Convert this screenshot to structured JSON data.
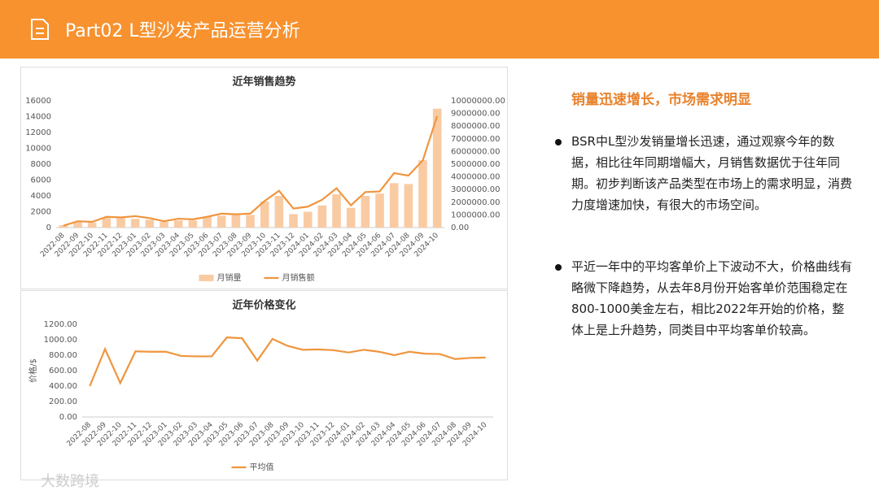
{
  "header": {
    "title": "Part02 L型沙发产品运营分析"
  },
  "chart_data": [
    {
      "type": "combo",
      "title": "近年销售趋势",
      "categories": [
        "2022-08",
        "2022-09",
        "2022-10",
        "2022-11",
        "2022-12",
        "2023-01",
        "2023-02",
        "2023-03",
        "2023-04",
        "2023-05",
        "2023-06",
        "2023-07",
        "2023-08",
        "2023-09",
        "2023-10",
        "2023-11",
        "2023-12",
        "2024-01",
        "2024-02",
        "2024-03",
        "2024-04",
        "2024-05",
        "2024-06",
        "2024-07",
        "2024-08",
        "2024-09",
        "2024-10"
      ],
      "series": [
        {
          "name": "月销量",
          "type": "bar",
          "color": "#f9cba3",
          "values": [
            300,
            700,
            600,
            1200,
            1200,
            1100,
            1000,
            700,
            900,
            900,
            1300,
            1500,
            1600,
            1600,
            3300,
            4000,
            1700,
            2000,
            2800,
            4200,
            2500,
            4000,
            4300,
            5600,
            5500,
            8500,
            15000
          ]
        },
        {
          "name": "月销售额",
          "type": "line",
          "axis": "y2",
          "color": "#f0953e",
          "values": [
            150000,
            500000,
            450000,
            850000,
            800000,
            900000,
            750000,
            500000,
            700000,
            650000,
            850000,
            1100000,
            1050000,
            1100000,
            2100000,
            2900000,
            1500000,
            1650000,
            2200000,
            3100000,
            1750000,
            2800000,
            2850000,
            4300000,
            4100000,
            5300000,
            8800000
          ]
        }
      ],
      "ylim": [
        0,
        16000
      ],
      "yticks": [
        0,
        2000,
        4000,
        6000,
        8000,
        10000,
        12000,
        14000,
        16000
      ],
      "y2lim": [
        0,
        10000000
      ],
      "y2ticks": [
        {
          "value": 0,
          "label": "0.00"
        },
        {
          "value": 1000000,
          "label": "1000000.00"
        },
        {
          "value": 2000000,
          "label": "2000000.00"
        },
        {
          "value": 3000000,
          "label": "3000000.00"
        },
        {
          "value": 4000000,
          "label": "4000000.00"
        },
        {
          "value": 5000000,
          "label": "5000000.00"
        },
        {
          "value": 6000000,
          "label": "6000000.00"
        },
        {
          "value": 7000000,
          "label": "7000000.00"
        },
        {
          "value": 8000000,
          "label": "8000000.00"
        },
        {
          "value": 9000000,
          "label": "9000000.00"
        },
        {
          "value": 10000000,
          "label": "10000000.00"
        }
      ],
      "grid": false,
      "legend": "bottom"
    },
    {
      "type": "line",
      "title": "近年价格变化",
      "y_label": "价格/$",
      "categories": [
        "2022-08",
        "2022-09",
        "2022-10",
        "2022-11",
        "2022-12",
        "2023-01",
        "2023-02",
        "2023-03",
        "2023-04",
        "2023-05",
        "2023-06",
        "2023-07",
        "2023-08",
        "2023-09",
        "2023-10",
        "2023-11",
        "2023-12",
        "2024-01",
        "2024-02",
        "2024-03",
        "2024-04",
        "2024-05",
        "2024-06",
        "2024-07",
        "2024-08",
        "2024-09",
        "2024-10"
      ],
      "series": [
        {
          "name": "平均值",
          "type": "line",
          "color": "#f0953e",
          "values": [
            400,
            880,
            440,
            850,
            845,
            845,
            790,
            785,
            785,
            1030,
            1020,
            730,
            1010,
            920,
            870,
            875,
            865,
            835,
            870,
            845,
            800,
            845,
            820,
            815,
            750,
            765,
            770
          ]
        }
      ],
      "ylim": [
        0,
        1200
      ],
      "yticks": [
        {
          "value": 0,
          "label": "0.00"
        },
        {
          "value": 200,
          "label": "200.00"
        },
        {
          "value": 400,
          "label": "400.00"
        },
        {
          "value": 600,
          "label": "600.00"
        },
        {
          "value": 800,
          "label": "800.00"
        },
        {
          "value": 1000,
          "label": "1000.00"
        },
        {
          "value": 1200,
          "label": "1200.00"
        }
      ],
      "grid": false,
      "legend": "bottom"
    }
  ],
  "notes": {
    "heading": "销量迅速增长，市场需求明显",
    "bullets": [
      "BSR中L型沙发销量增长迅速，通过观察今年的数据，相比往年同期增幅大，月销售数据优于往年同期。初步判断该产品类型在市场上的需求明显，消费力度增速加快，有很大的市场空间。",
      "平近一年中的平均客单价上下波动不大，价格曲线有略微下降趋势，从去年8月份开始客单价范围稳定在800-1000美金左右，相比2022年开始的价格，整体上是上升趋势，同类目中平均客单价较高。"
    ]
  },
  "watermark": "大数跨境"
}
